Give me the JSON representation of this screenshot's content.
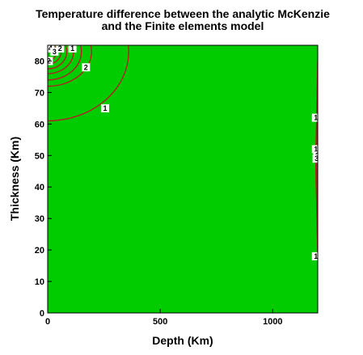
{
  "chart_data": {
    "type": "contour",
    "title_line1": "Temperature difference between the analytic McKenzie",
    "title_line2": "and the Finite elements model",
    "xlabel": "Depth (Km)",
    "ylabel": "Thickness (Km)",
    "xlim": [
      0,
      1200
    ],
    "ylim": [
      0,
      85
    ],
    "xticks": [
      0,
      500,
      1000
    ],
    "yticks": [
      0,
      10,
      20,
      30,
      40,
      50,
      60,
      70,
      80
    ],
    "fill_color": "#00cc00",
    "contour_color": "#b22222",
    "left_contours": [
      {
        "level": "1",
        "cx": 0,
        "cy": 83,
        "rx": 360,
        "ry": 22,
        "label_x": 255,
        "label_y": 65
      },
      {
        "level": "2",
        "cx": 0,
        "cy": 83,
        "rx": 195,
        "ry": 11,
        "label_x": 170,
        "label_y": 78
      },
      {
        "level": "",
        "cx": 0,
        "cy": 83,
        "rx": 150,
        "ry": 9,
        "label_x": null,
        "label_y": null
      },
      {
        "level": "",
        "cx": 0,
        "cy": 83,
        "rx": 115,
        "ry": 7,
        "label_x": null,
        "label_y": null
      },
      {
        "level": "",
        "cx": 0,
        "cy": 83,
        "rx": 85,
        "ry": 5.5,
        "label_x": null,
        "label_y": null
      },
      {
        "level": "",
        "cx": 0,
        "cy": 83,
        "rx": 60,
        "ry": 4,
        "label_x": null,
        "label_y": null
      },
      {
        "level": "",
        "cx": 0,
        "cy": 83,
        "rx": 38,
        "ry": 3,
        "label_x": null,
        "label_y": null
      }
    ],
    "left_labels": [
      {
        "text": "4",
        "x": 12,
        "y": 84
      },
      {
        "text": "3",
        "x": 30,
        "y": 83
      },
      {
        "text": "2",
        "x": 55,
        "y": 84
      },
      {
        "text": "1",
        "x": 110,
        "y": 84
      },
      {
        "text": "2",
        "x": 5,
        "y": 80
      }
    ],
    "right_contours": [
      {
        "x_offset": 2,
        "y_from": 18,
        "y_to": 80
      },
      {
        "x_offset": 6,
        "y_from": 22,
        "y_to": 75
      },
      {
        "x_offset": 10,
        "y_from": 30,
        "y_to": 66
      }
    ],
    "right_labels": [
      {
        "text": "1",
        "x": 1192,
        "y": 62
      },
      {
        "text": "1",
        "x": 1192,
        "y": 52
      },
      {
        "text": "2",
        "x": 1198,
        "y": 50
      },
      {
        "text": "3",
        "x": 1195,
        "y": 49
      },
      {
        "text": "1",
        "x": 1192,
        "y": 18
      }
    ]
  }
}
